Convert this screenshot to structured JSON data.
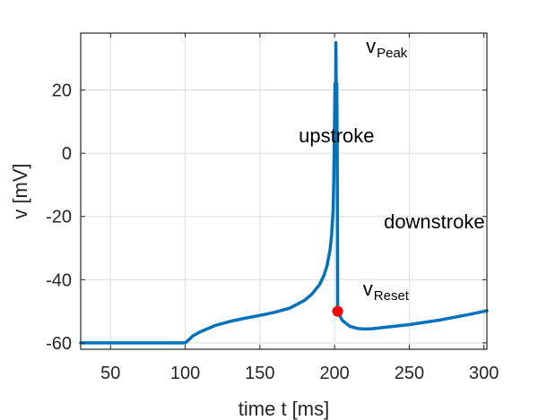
{
  "chart_data": {
    "type": "line",
    "xlabel": "time  t  [ms]",
    "ylabel": "v  [mV]",
    "xlim": [
      30,
      302
    ],
    "ylim": [
      -62,
      38
    ],
    "xticks": [
      50,
      100,
      150,
      200,
      250,
      300
    ],
    "yticks": [
      -60,
      -40,
      -20,
      0,
      20
    ],
    "grid": true,
    "series": [
      {
        "color": "#0072BD",
        "points": [
          [
            30,
            -60
          ],
          [
            100,
            -60
          ],
          [
            102,
            -59.2
          ],
          [
            105,
            -57.8
          ],
          [
            110,
            -56.5
          ],
          [
            120,
            -54.5
          ],
          [
            130,
            -53.2
          ],
          [
            140,
            -52.2
          ],
          [
            150,
            -51.3
          ],
          [
            160,
            -50.3
          ],
          [
            170,
            -49.0
          ],
          [
            180,
            -46.5
          ],
          [
            185,
            -44.5
          ],
          [
            190,
            -41.5
          ],
          [
            193,
            -38.5
          ],
          [
            195,
            -35.5
          ],
          [
            197,
            -30.5
          ],
          [
            198,
            -26.0
          ],
          [
            199,
            -18.0
          ],
          [
            199.5,
            -8.0
          ],
          [
            200,
            10.0
          ],
          [
            200.3,
            22.0
          ],
          [
            200.6,
            1.0
          ],
          [
            200.9,
            35.0
          ],
          [
            201.2,
            14.0
          ],
          [
            201.5,
            22.0
          ],
          [
            201.8,
            0.0
          ],
          [
            202.1,
            -50.0
          ],
          [
            205,
            -52.8
          ],
          [
            210,
            -54.7
          ],
          [
            215,
            -55.4
          ],
          [
            220,
            -55.6
          ],
          [
            225,
            -55.5
          ],
          [
            235,
            -55.0
          ],
          [
            250,
            -54.2
          ],
          [
            270,
            -52.8
          ],
          [
            290,
            -51.0
          ],
          [
            302,
            -49.8
          ]
        ]
      }
    ],
    "annotations": [
      {
        "text": "upstroke",
        "x": 176,
        "y": 3.5,
        "color": "#000000"
      },
      {
        "text": "downstroke",
        "x": 233,
        "y": -23.8,
        "color": "#000000"
      },
      {
        "text": "v",
        "sub": "Peak",
        "x": 221,
        "y": 31.8,
        "color": "#000000"
      },
      {
        "text": "v",
        "sub": "Reset",
        "x": 219,
        "y": -45.0,
        "color": "#ff0000"
      }
    ],
    "markers": [
      {
        "x": 202.1,
        "y": -50.0,
        "color": "#ff0000"
      }
    ]
  }
}
